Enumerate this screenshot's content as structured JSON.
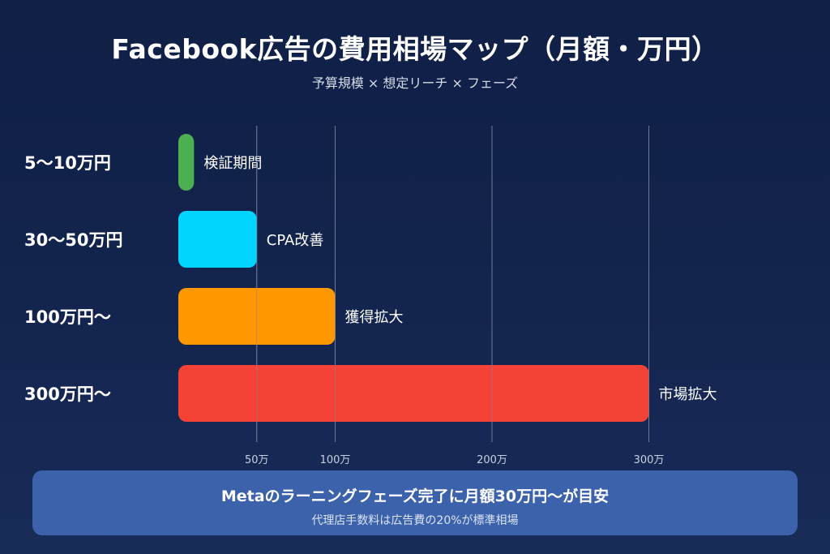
{
  "title": "Facebook広告の費用相場マップ（月額・万円）",
  "subtitle": "予算規模 × 想定リーチ × フェーズ",
  "chart_data": {
    "type": "bar",
    "orientation": "horizontal",
    "categories": [
      "5〜10万円",
      "30〜50万円",
      "100万円〜",
      "300万円〜"
    ],
    "values": [
      10,
      50,
      100,
      300
    ],
    "bar_labels": [
      "検証期間",
      "CPA改善",
      "獲得拡大",
      "市場拡大"
    ],
    "colors": [
      "#4caf50",
      "#00d4ff",
      "#ff9800",
      "#f44336"
    ],
    "x_ticks": [
      {
        "value": 50,
        "label": "50万"
      },
      {
        "value": 100,
        "label": "100万"
      },
      {
        "value": 200,
        "label": "200万"
      },
      {
        "value": 300,
        "label": "300万"
      }
    ],
    "xlim": [
      0,
      300
    ],
    "grid": true
  },
  "footer": {
    "main": "Metaのラーニングフェーズ完了に月額30万円〜が目安",
    "sub": "代理店手数料は広告費の20%が標準相場"
  }
}
